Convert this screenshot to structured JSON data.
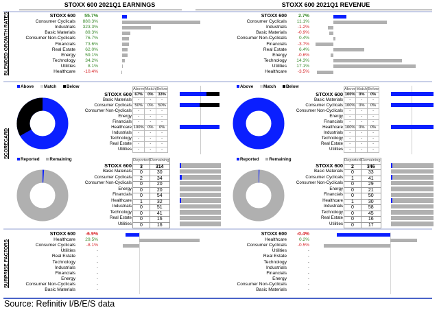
{
  "titles": {
    "earnings": "STOXX 600 2021Q1 EARNINGS",
    "revenue": "STOXX 600 2021Q1 REVENUE"
  },
  "section_labels": {
    "growth": "BLENDED GROWTH RATES",
    "scorecard": "SCORECARD",
    "surprise": "SURPRISE FACTORS"
  },
  "colors": {
    "above": "#0a1fff",
    "match": "#d9d9d9",
    "below": "#000000",
    "positive": "#3a8a2c",
    "negative": "#d8262a",
    "bar_gray": "#b0b0b0"
  },
  "legends": {
    "scorecard": [
      "Above",
      "Match",
      "Below"
    ],
    "reported": [
      "Reported",
      "Remaining"
    ]
  },
  "scorecard_headers": [
    "Above",
    "Match",
    "Below"
  ],
  "reported_headers": [
    "Reported",
    "Remaining"
  ],
  "earnings": {
    "growth": [
      {
        "label": "STOXX 600",
        "value": "55.7%"
      },
      {
        "label": "Consumer Cyclicals",
        "value": "880.3%"
      },
      {
        "label": "Industrials",
        "value": "323.3%"
      },
      {
        "label": "Basic Materials",
        "value": "89.3%"
      },
      {
        "label": "Consumer Non-Cyclicals",
        "value": "76.7%"
      },
      {
        "label": "Financials",
        "value": "73.6%"
      },
      {
        "label": "Real Estate",
        "value": "62.0%"
      },
      {
        "label": "Energy",
        "value": "59.1%"
      },
      {
        "label": "Technology",
        "value": "34.2%"
      },
      {
        "label": "Utilities",
        "value": "8.1%"
      },
      {
        "label": "Healthcare",
        "value": "-10.4%"
      }
    ],
    "scorecard": [
      {
        "label": "STOXX 600",
        "above": "67%",
        "match": "0%",
        "below": "33%"
      },
      {
        "label": "Basic Materials",
        "above": "-",
        "match": "-",
        "below": "-"
      },
      {
        "label": "Consumer Cyclicals",
        "above": "50%",
        "match": "0%",
        "below": "50%"
      },
      {
        "label": "Consumer Non-Cyclicals",
        "above": "-",
        "match": "-",
        "below": "-"
      },
      {
        "label": "Energy",
        "above": "-",
        "match": "-",
        "below": "-"
      },
      {
        "label": "Financials",
        "above": "-",
        "match": "-",
        "below": "-"
      },
      {
        "label": "Healthcare",
        "above": "100%",
        "match": "0%",
        "below": "0%"
      },
      {
        "label": "Industrials",
        "above": "-",
        "match": "-",
        "below": "-"
      },
      {
        "label": "Technology",
        "above": "-",
        "match": "-",
        "below": "-"
      },
      {
        "label": "Real Estate",
        "above": "-",
        "match": "-",
        "below": "-"
      },
      {
        "label": "Utilities",
        "above": "-",
        "match": "-",
        "below": "-"
      }
    ],
    "reported": [
      {
        "label": "STOXX 600",
        "reported": "3",
        "remaining": "314"
      },
      {
        "label": "Basic Materials",
        "reported": "0",
        "remaining": "30"
      },
      {
        "label": "Consumer Cyclicals",
        "reported": "2",
        "remaining": "34"
      },
      {
        "label": "Consumer Non-Cyclicals",
        "reported": "0",
        "remaining": "20"
      },
      {
        "label": "Energy",
        "reported": "0",
        "remaining": "20"
      },
      {
        "label": "Financials",
        "reported": "0",
        "remaining": "54"
      },
      {
        "label": "Healthcare",
        "reported": "1",
        "remaining": "32"
      },
      {
        "label": "Industrials",
        "reported": "0",
        "remaining": "51"
      },
      {
        "label": "Technology",
        "reported": "0",
        "remaining": "41"
      },
      {
        "label": "Real Estate",
        "reported": "0",
        "remaining": "16"
      },
      {
        "label": "Utilities",
        "reported": "0",
        "remaining": "16"
      }
    ],
    "surprise": [
      {
        "label": "STOXX 600",
        "value": "-6.9%"
      },
      {
        "label": "Healthcare",
        "value": "29.5%"
      },
      {
        "label": "Consumer Cyclicals",
        "value": "-8.1%"
      },
      {
        "label": "Utilities",
        "value": "-"
      },
      {
        "label": "Real Estate",
        "value": "-"
      },
      {
        "label": "Technology",
        "value": "-"
      },
      {
        "label": "Industrials",
        "value": "-"
      },
      {
        "label": "Financials",
        "value": "-"
      },
      {
        "label": "Energy",
        "value": "-"
      },
      {
        "label": "Consumer Non-Cyclicals",
        "value": "-"
      },
      {
        "label": "Basic Materials",
        "value": "-"
      }
    ]
  },
  "revenue": {
    "growth": [
      {
        "label": "STOXX 600",
        "value": "2.7%"
      },
      {
        "label": "Consumer Cyclicals",
        "value": "11.1%"
      },
      {
        "label": "Industrials",
        "value": "-1.2%"
      },
      {
        "label": "Basic Materials",
        "value": "-0.9%"
      },
      {
        "label": "Consumer Non-Cyclicals",
        "value": "0.4%"
      },
      {
        "label": "Financials",
        "value": "-3.7%"
      },
      {
        "label": "Real Estate",
        "value": "6.4%"
      },
      {
        "label": "Energy",
        "value": "-0.6%"
      },
      {
        "label": "Technology",
        "value": "14.3%"
      },
      {
        "label": "Utilities",
        "value": "17.1%"
      },
      {
        "label": "Healthcare",
        "value": "-3.5%"
      }
    ],
    "scorecard": [
      {
        "label": "STOXX 600",
        "above": "100%",
        "match": "0%",
        "below": "0%"
      },
      {
        "label": "Basic Materials",
        "above": "-",
        "match": "-",
        "below": "-"
      },
      {
        "label": "Consumer Cyclicals",
        "above": "100%",
        "match": "0%",
        "below": "0%"
      },
      {
        "label": "Consumer Non-Cyclicals",
        "above": "-",
        "match": "-",
        "below": "-"
      },
      {
        "label": "Energy",
        "above": "-",
        "match": "-",
        "below": "-"
      },
      {
        "label": "Financials",
        "above": "-",
        "match": "-",
        "below": "-"
      },
      {
        "label": "Healthcare",
        "above": "100%",
        "match": "0%",
        "below": "0%"
      },
      {
        "label": "Industrials",
        "above": "-",
        "match": "-",
        "below": "-"
      },
      {
        "label": "Technology",
        "above": "-",
        "match": "-",
        "below": "-"
      },
      {
        "label": "Real Estate",
        "above": "-",
        "match": "-",
        "below": "-"
      },
      {
        "label": "Utilities",
        "above": "-",
        "match": "-",
        "below": "-"
      }
    ],
    "reported": [
      {
        "label": "STOXX 600",
        "reported": "2",
        "remaining": "346"
      },
      {
        "label": "Basic Materials",
        "reported": "0",
        "remaining": "33"
      },
      {
        "label": "Consumer Cyclicals",
        "reported": "1",
        "remaining": "41"
      },
      {
        "label": "Consumer Non-Cyclicals",
        "reported": "0",
        "remaining": "29"
      },
      {
        "label": "Energy",
        "reported": "0",
        "remaining": "21"
      },
      {
        "label": "Financials",
        "reported": "0",
        "remaining": "50"
      },
      {
        "label": "Healthcare",
        "reported": "1",
        "remaining": "30"
      },
      {
        "label": "Industrials",
        "reported": "0",
        "remaining": "58"
      },
      {
        "label": "Technology",
        "reported": "0",
        "remaining": "45"
      },
      {
        "label": "Real Estate",
        "reported": "0",
        "remaining": "16"
      },
      {
        "label": "Utilities",
        "reported": "0",
        "remaining": "17"
      }
    ],
    "surprise": [
      {
        "label": "STOXX 600",
        "value": "-0.4%"
      },
      {
        "label": "Healthcare",
        "value": "0.2%"
      },
      {
        "label": "Consumer Cyclicals",
        "value": "-0.5%"
      },
      {
        "label": "Utilities",
        "value": "-"
      },
      {
        "label": "Real Estate",
        "value": "-"
      },
      {
        "label": "Technology",
        "value": "-"
      },
      {
        "label": "Industrials",
        "value": "-"
      },
      {
        "label": "Financials",
        "value": "-"
      },
      {
        "label": "Energy",
        "value": "-"
      },
      {
        "label": "Consumer Non-Cyclicals",
        "value": "-"
      },
      {
        "label": "Basic Materials",
        "value": "-"
      }
    ]
  },
  "source": "Source: Refinitiv I/B/E/S data",
  "chart_data": [
    {
      "type": "bar",
      "title": "STOXX 600 2021Q1 EARNINGS - Blended Growth Rates",
      "categories": [
        "STOXX 600",
        "Consumer Cyclicals",
        "Industrials",
        "Basic Materials",
        "Consumer Non-Cyclicals",
        "Financials",
        "Real Estate",
        "Energy",
        "Technology",
        "Utilities",
        "Healthcare"
      ],
      "values": [
        55.7,
        880.3,
        323.3,
        89.3,
        76.7,
        73.6,
        62.0,
        59.1,
        34.2,
        8.1,
        -10.4
      ],
      "unit": "%",
      "orientation": "horizontal"
    },
    {
      "type": "bar",
      "title": "STOXX 600 2021Q1 REVENUE - Blended Growth Rates",
      "categories": [
        "STOXX 600",
        "Consumer Cyclicals",
        "Industrials",
        "Basic Materials",
        "Consumer Non-Cyclicals",
        "Financials",
        "Real Estate",
        "Energy",
        "Technology",
        "Utilities",
        "Healthcare"
      ],
      "values": [
        2.7,
        11.1,
        -1.2,
        -0.9,
        0.4,
        -3.7,
        6.4,
        -0.6,
        14.3,
        17.1,
        -3.5
      ],
      "unit": "%",
      "orientation": "horizontal"
    },
    {
      "type": "pie",
      "title": "Earnings Scorecard (STOXX 600)",
      "categories": [
        "Above",
        "Match",
        "Below"
      ],
      "values": [
        67,
        0,
        33
      ]
    },
    {
      "type": "pie",
      "title": "Revenue Scorecard (STOXX 600)",
      "categories": [
        "Above",
        "Match",
        "Below"
      ],
      "values": [
        100,
        0,
        0
      ]
    },
    {
      "type": "pie",
      "title": "Earnings Reported vs Remaining (STOXX 600)",
      "categories": [
        "Reported",
        "Remaining"
      ],
      "values": [
        3,
        314
      ]
    },
    {
      "type": "pie",
      "title": "Revenue Reported vs Remaining (STOXX 600)",
      "categories": [
        "Reported",
        "Remaining"
      ],
      "values": [
        2,
        346
      ]
    },
    {
      "type": "bar",
      "title": "Earnings Surprise Factors",
      "categories": [
        "STOXX 600",
        "Healthcare",
        "Consumer Cyclicals"
      ],
      "values": [
        -6.9,
        29.5,
        -8.1
      ],
      "unit": "%",
      "orientation": "horizontal"
    },
    {
      "type": "bar",
      "title": "Revenue Surprise Factors",
      "categories": [
        "STOXX 600",
        "Healthcare",
        "Consumer Cyclicals"
      ],
      "values": [
        -0.4,
        0.2,
        -0.5
      ],
      "unit": "%",
      "orientation": "horizontal"
    }
  ]
}
